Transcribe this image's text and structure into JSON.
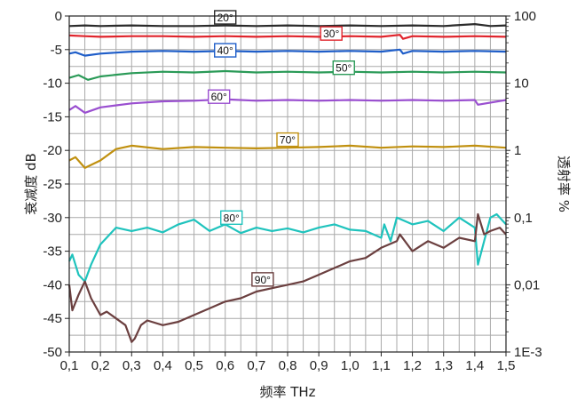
{
  "chart_data": {
    "type": "line",
    "title": "",
    "xlabel": "频率 THz",
    "ylabel": "衰减度 dB",
    "y2label": "透射率 %",
    "xlim": [
      0.1,
      1.5
    ],
    "ylim": [
      -50,
      0
    ],
    "y2scale": "log",
    "y2lim": [
      0.001,
      100
    ],
    "grid": true,
    "legend": "inline-labels",
    "x_ticks": [
      "0,1",
      "0,2",
      "0,3",
      "0,4",
      "0,5",
      "0,6",
      "0,7",
      "0,8",
      "0,9",
      "1,0",
      "1,1",
      "1,2",
      "1,3",
      "1,4",
      "1,5"
    ],
    "y_ticks": [
      "0",
      "-5",
      "-10",
      "-15",
      "-20",
      "-25",
      "-30",
      "-35",
      "-40",
      "-45",
      "-50"
    ],
    "y2_ticks": [
      "100",
      "10",
      "1",
      "0,1",
      "0,01",
      "1E-3"
    ],
    "series": [
      {
        "label": "20°",
        "color": "#2b2b2b",
        "x": [
          0.1,
          0.15,
          0.2,
          0.3,
          0.4,
          0.5,
          0.6,
          0.7,
          0.8,
          0.9,
          1.0,
          1.1,
          1.2,
          1.3,
          1.4,
          1.45,
          1.5
        ],
        "y": [
          -1.5,
          -1.4,
          -1.5,
          -1.4,
          -1.5,
          -1.5,
          -1.4,
          -1.5,
          -1.4,
          -1.5,
          -1.4,
          -1.5,
          -1.4,
          -1.5,
          -1.2,
          -1.5,
          -1.4
        ]
      },
      {
        "label": "30°",
        "color": "#e0242c",
        "x": [
          0.1,
          0.15,
          0.2,
          0.3,
          0.4,
          0.5,
          0.6,
          0.7,
          0.8,
          0.9,
          1.0,
          1.1,
          1.16,
          1.17,
          1.2,
          1.3,
          1.4,
          1.5
        ],
        "y": [
          -2.9,
          -3.0,
          -3.1,
          -3.0,
          -3.0,
          -3.1,
          -3.0,
          -3.1,
          -3.0,
          -3.1,
          -3.0,
          -3.1,
          -2.8,
          -3.4,
          -3.0,
          -3.1,
          -3.0,
          -3.1
        ]
      },
      {
        "label": "40°",
        "color": "#1f5ec9",
        "x": [
          0.1,
          0.12,
          0.15,
          0.2,
          0.3,
          0.4,
          0.5,
          0.6,
          0.7,
          0.8,
          0.9,
          1.0,
          1.1,
          1.16,
          1.17,
          1.2,
          1.3,
          1.4,
          1.5
        ],
        "y": [
          -5.6,
          -5.4,
          -5.9,
          -5.6,
          -5.3,
          -5.2,
          -5.3,
          -5.2,
          -5.3,
          -5.2,
          -5.3,
          -5.2,
          -5.3,
          -5.0,
          -5.6,
          -5.2,
          -5.3,
          -5.2,
          -5.3
        ]
      },
      {
        "label": "50°",
        "color": "#2a9a57",
        "x": [
          0.1,
          0.13,
          0.16,
          0.2,
          0.3,
          0.4,
          0.5,
          0.6,
          0.7,
          0.8,
          0.9,
          1.0,
          1.1,
          1.2,
          1.3,
          1.4,
          1.5
        ],
        "y": [
          -9.2,
          -8.8,
          -9.5,
          -9.0,
          -8.5,
          -8.3,
          -8.4,
          -8.2,
          -8.4,
          -8.3,
          -8.4,
          -8.3,
          -8.4,
          -8.3,
          -8.4,
          -8.3,
          -8.4
        ]
      },
      {
        "label": "60°",
        "color": "#9a4fd0",
        "x": [
          0.1,
          0.12,
          0.15,
          0.2,
          0.3,
          0.4,
          0.5,
          0.6,
          0.7,
          0.8,
          0.9,
          1.0,
          1.1,
          1.2,
          1.3,
          1.4,
          1.41,
          1.5
        ],
        "y": [
          -14.0,
          -13.4,
          -14.4,
          -13.6,
          -13.0,
          -12.7,
          -12.6,
          -12.4,
          -12.6,
          -12.5,
          -12.6,
          -12.5,
          -12.6,
          -12.5,
          -12.6,
          -12.5,
          -13.2,
          -12.5
        ]
      },
      {
        "label": "70°",
        "color": "#c0900f",
        "x": [
          0.1,
          0.12,
          0.15,
          0.2,
          0.25,
          0.3,
          0.4,
          0.5,
          0.6,
          0.7,
          0.8,
          0.9,
          1.0,
          1.1,
          1.2,
          1.3,
          1.4,
          1.5
        ],
        "y": [
          -21.5,
          -21.0,
          -22.6,
          -21.5,
          -19.8,
          -19.3,
          -19.8,
          -19.5,
          -19.6,
          -19.7,
          -19.6,
          -19.5,
          -19.3,
          -19.6,
          -19.4,
          -19.5,
          -19.3,
          -19.6
        ]
      },
      {
        "label": "80°",
        "color": "#1fc3bd",
        "x": [
          0.1,
          0.11,
          0.13,
          0.15,
          0.17,
          0.2,
          0.25,
          0.3,
          0.35,
          0.4,
          0.45,
          0.5,
          0.55,
          0.6,
          0.65,
          0.7,
          0.75,
          0.8,
          0.85,
          0.9,
          0.95,
          1.0,
          1.05,
          1.1,
          1.11,
          1.13,
          1.15,
          1.2,
          1.25,
          1.3,
          1.35,
          1.4,
          1.41,
          1.45,
          1.47,
          1.5
        ],
        "y": [
          -36.5,
          -35.5,
          -38.5,
          -39.5,
          -37.0,
          -34.0,
          -31.5,
          -32.0,
          -31.5,
          -32.2,
          -31.0,
          -30.3,
          -32.0,
          -31.0,
          -32.3,
          -31.5,
          -32.0,
          -31.6,
          -32.2,
          -31.5,
          -31.0,
          -31.8,
          -32.0,
          -33.0,
          -31.0,
          -33.5,
          -30.0,
          -31.0,
          -30.5,
          -32.0,
          -30.0,
          -31.5,
          -37.0,
          -30.0,
          -29.5,
          -31.0
        ]
      },
      {
        "label": "90°",
        "color": "#6b3f3f",
        "x": [
          0.1,
          0.11,
          0.13,
          0.15,
          0.17,
          0.2,
          0.22,
          0.25,
          0.28,
          0.3,
          0.31,
          0.33,
          0.35,
          0.4,
          0.45,
          0.5,
          0.55,
          0.6,
          0.65,
          0.7,
          0.75,
          0.8,
          0.85,
          0.9,
          0.95,
          1.0,
          1.05,
          1.1,
          1.15,
          1.16,
          1.2,
          1.25,
          1.3,
          1.35,
          1.4,
          1.41,
          1.43,
          1.45,
          1.48,
          1.5
        ],
        "y": [
          -40.0,
          -43.8,
          -41.5,
          -39.5,
          -42.0,
          -44.5,
          -44.0,
          -45.0,
          -46.0,
          -48.5,
          -48.0,
          -46.0,
          -45.3,
          -46.0,
          -45.5,
          -44.5,
          -43.5,
          -42.5,
          -42.0,
          -41.0,
          -40.5,
          -40.0,
          -39.5,
          -38.5,
          -37.5,
          -36.5,
          -36.0,
          -34.5,
          -33.5,
          -32.5,
          -35.0,
          -33.5,
          -34.5,
          -33.0,
          -33.5,
          -29.5,
          -32.5,
          -32.0,
          -31.5,
          -32.5
        ]
      }
    ],
    "annotations": [
      {
        "text": "20°",
        "x": 0.6,
        "y": -0.2,
        "color": "#2b2b2b"
      },
      {
        "text": "30°",
        "x": 0.94,
        "y": -2.6,
        "color": "#e0242c"
      },
      {
        "text": "40°",
        "x": 0.6,
        "y": -5.1,
        "color": "#1f5ec9"
      },
      {
        "text": "50°",
        "x": 0.98,
        "y": -7.7,
        "color": "#2a9a57"
      },
      {
        "text": "60°",
        "x": 0.58,
        "y": -12.0,
        "color": "#9a4fd0"
      },
      {
        "text": "70°",
        "x": 0.8,
        "y": -18.4,
        "color": "#c0900f"
      },
      {
        "text": "80°",
        "x": 0.62,
        "y": -30.0,
        "color": "#1fc3bd"
      },
      {
        "text": "90°",
        "x": 0.72,
        "y": -39.2,
        "color": "#6b3f3f"
      }
    ]
  }
}
